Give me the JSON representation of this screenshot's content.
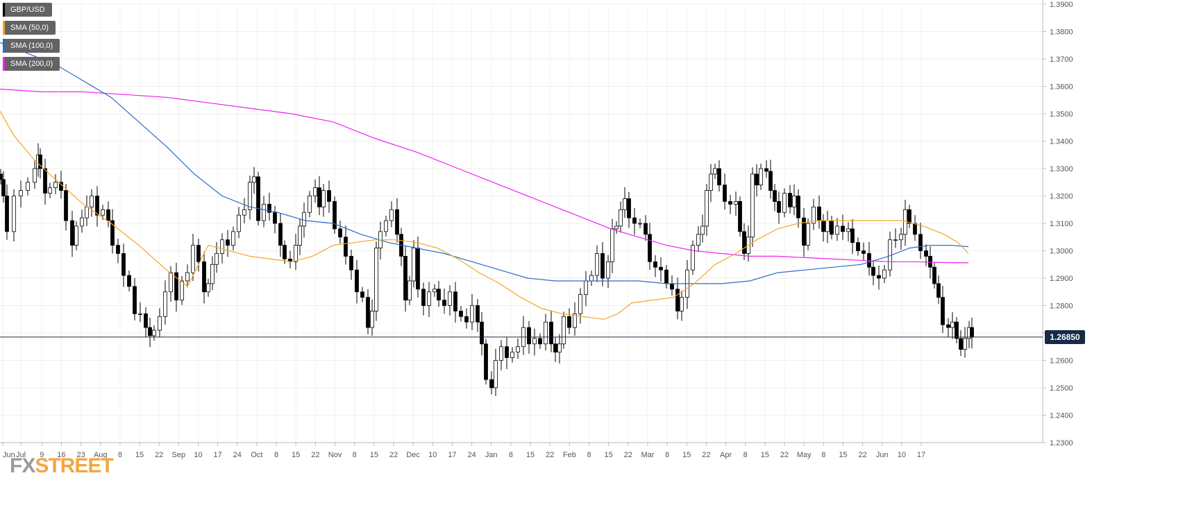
{
  "chart_data": {
    "type": "candlestick",
    "symbol": "GBP/USD",
    "ylim": [
      1.23,
      1.39
    ],
    "y_ticks": [
      "1.3900",
      "1.3800",
      "1.3700",
      "1.3600",
      "1.3500",
      "1.3400",
      "1.3300",
      "1.3200",
      "1.3100",
      "1.3000",
      "1.2900",
      "1.2800",
      "1.2700",
      "1.2600",
      "1.2500",
      "1.2400",
      "1.2300"
    ],
    "x_ticks": [
      "Jun",
      "Jul",
      "9",
      "16",
      "23",
      "Aug",
      "8",
      "15",
      "22",
      "Sep",
      "10",
      "17",
      "24",
      "Oct",
      "8",
      "15",
      "22",
      "Nov",
      "8",
      "15",
      "22",
      "Dec",
      "10",
      "17",
      "24",
      "Jan",
      "8",
      "15",
      "22",
      "Feb",
      "8",
      "15",
      "22",
      "Mar",
      "8",
      "15",
      "22",
      "Apr",
      "8",
      "15",
      "22",
      "May",
      "8",
      "15",
      "22",
      "Jun",
      "10",
      "17"
    ],
    "current_price": "1.26850",
    "current_price_value": 1.2685,
    "legend": [
      {
        "name": "GBP/USD",
        "color": "#000000"
      },
      {
        "name": "SMA (50,0)",
        "color": "#f5a623"
      },
      {
        "name": "SMA (100,0)",
        "color": "#2b6cc4"
      },
      {
        "name": "SMA (200,0)",
        "color": "#ee22ee"
      }
    ],
    "close_series": [
      [
        1,
        1.326
      ],
      [
        5,
        1.32
      ],
      [
        10,
        1.307
      ],
      [
        20,
        1.32
      ],
      [
        30,
        1.322
      ],
      [
        40,
        1.325
      ],
      [
        50,
        1.33
      ],
      [
        55,
        1.335
      ],
      [
        58,
        1.33
      ],
      [
        65,
        1.321
      ],
      [
        72,
        1.323
      ],
      [
        80,
        1.325
      ],
      [
        88,
        1.322
      ],
      [
        95,
        1.311
      ],
      [
        104,
        1.302
      ],
      [
        110,
        1.309
      ],
      [
        118,
        1.312
      ],
      [
        125,
        1.316
      ],
      [
        132,
        1.32
      ],
      [
        140,
        1.313
      ],
      [
        148,
        1.315
      ],
      [
        156,
        1.311
      ],
      [
        162,
        1.302
      ],
      [
        170,
        1.299
      ],
      [
        178,
        1.291
      ],
      [
        186,
        1.287
      ],
      [
        194,
        1.277
      ],
      [
        202,
        1.277
      ],
      [
        210,
        1.272
      ],
      [
        216,
        1.269
      ],
      [
        222,
        1.271
      ],
      [
        230,
        1.276
      ],
      [
        238,
        1.285
      ],
      [
        246,
        1.292
      ],
      [
        254,
        1.282
      ],
      [
        262,
        1.289
      ],
      [
        270,
        1.292
      ],
      [
        278,
        1.302
      ],
      [
        286,
        1.296
      ],
      [
        294,
        1.285
      ],
      [
        300,
        1.288
      ],
      [
        306,
        1.295
      ],
      [
        312,
        1.299
      ],
      [
        320,
        1.304
      ],
      [
        328,
        1.302
      ],
      [
        336,
        1.307
      ],
      [
        344,
        1.313
      ],
      [
        352,
        1.315
      ],
      [
        360,
        1.325
      ],
      [
        366,
        1.327
      ],
      [
        372,
        1.311
      ],
      [
        380,
        1.317
      ],
      [
        388,
        1.314
      ],
      [
        396,
        1.31
      ],
      [
        404,
        1.302
      ],
      [
        410,
        1.297
      ],
      [
        418,
        1.296
      ],
      [
        426,
        1.302
      ],
      [
        432,
        1.309
      ],
      [
        438,
        1.314
      ],
      [
        446,
        1.32
      ],
      [
        454,
        1.323
      ],
      [
        460,
        1.316
      ],
      [
        466,
        1.322
      ],
      [
        474,
        1.318
      ],
      [
        482,
        1.308
      ],
      [
        490,
        1.305
      ],
      [
        498,
        1.298
      ],
      [
        506,
        1.293
      ],
      [
        514,
        1.285
      ],
      [
        522,
        1.283
      ],
      [
        530,
        1.272
      ],
      [
        536,
        1.278
      ],
      [
        542,
        1.301
      ],
      [
        548,
        1.307
      ],
      [
        556,
        1.311
      ],
      [
        564,
        1.315
      ],
      [
        572,
        1.306
      ],
      [
        578,
        1.298
      ],
      [
        584,
        1.282
      ],
      [
        590,
        1.289
      ],
      [
        596,
        1.301
      ],
      [
        602,
        1.286
      ],
      [
        610,
        1.28
      ],
      [
        618,
        1.285
      ],
      [
        626,
        1.286
      ],
      [
        632,
        1.282
      ],
      [
        640,
        1.28
      ],
      [
        648,
        1.285
      ],
      [
        656,
        1.278
      ],
      [
        664,
        1.276
      ],
      [
        672,
        1.274
      ],
      [
        680,
        1.28
      ],
      [
        688,
        1.274
      ],
      [
        694,
        1.266
      ],
      [
        700,
        1.253
      ],
      [
        708,
        1.25
      ],
      [
        714,
        1.26
      ],
      [
        722,
        1.265
      ],
      [
        730,
        1.261
      ],
      [
        738,
        1.263
      ],
      [
        746,
        1.265
      ],
      [
        754,
        1.272
      ],
      [
        762,
        1.266
      ],
      [
        770,
        1.268
      ],
      [
        778,
        1.266
      ],
      [
        786,
        1.274
      ],
      [
        794,
        1.266
      ],
      [
        800,
        1.263
      ],
      [
        806,
        1.266
      ],
      [
        812,
        1.276
      ],
      [
        820,
        1.272
      ],
      [
        828,
        1.277
      ],
      [
        836,
        1.284
      ],
      [
        844,
        1.289
      ],
      [
        852,
        1.291
      ],
      [
        860,
        1.299
      ],
      [
        868,
        1.29
      ],
      [
        876,
        1.296
      ],
      [
        882,
        1.308
      ],
      [
        888,
        1.309
      ],
      [
        894,
        1.315
      ],
      [
        900,
        1.319
      ],
      [
        906,
        1.312
      ],
      [
        914,
        1.31
      ],
      [
        922,
        1.31
      ],
      [
        930,
        1.306
      ],
      [
        936,
        1.296
      ],
      [
        944,
        1.294
      ],
      [
        952,
        1.293
      ],
      [
        960,
        1.288
      ],
      [
        968,
        1.286
      ],
      [
        976,
        1.278
      ],
      [
        982,
        1.283
      ],
      [
        990,
        1.293
      ],
      [
        998,
        1.302
      ],
      [
        1006,
        1.306
      ],
      [
        1012,
        1.309
      ],
      [
        1018,
        1.322
      ],
      [
        1024,
        1.328
      ],
      [
        1030,
        1.33
      ],
      [
        1036,
        1.324
      ],
      [
        1044,
        1.318
      ],
      [
        1052,
        1.317
      ],
      [
        1060,
        1.318
      ],
      [
        1066,
        1.307
      ],
      [
        1072,
        1.299
      ],
      [
        1078,
        1.305
      ],
      [
        1084,
        1.328
      ],
      [
        1090,
        1.324
      ],
      [
        1096,
        1.33
      ],
      [
        1104,
        1.329
      ],
      [
        1110,
        1.322
      ],
      [
        1116,
        1.318
      ],
      [
        1122,
        1.314
      ],
      [
        1130,
        1.321
      ],
      [
        1138,
        1.316
      ],
      [
        1144,
        1.32
      ],
      [
        1150,
        1.312
      ],
      [
        1158,
        1.302
      ],
      [
        1164,
        1.31
      ],
      [
        1172,
        1.316
      ],
      [
        1180,
        1.311
      ],
      [
        1186,
        1.307
      ],
      [
        1192,
        1.311
      ],
      [
        1198,
        1.306
      ],
      [
        1206,
        1.309
      ],
      [
        1214,
        1.307
      ],
      [
        1222,
        1.308
      ],
      [
        1228,
        1.303
      ],
      [
        1236,
        1.3
      ],
      [
        1244,
        1.299
      ],
      [
        1252,
        1.294
      ],
      [
        1258,
        1.291
      ],
      [
        1266,
        1.29
      ],
      [
        1274,
        1.293
      ],
      [
        1282,
        1.304
      ],
      [
        1290,
        1.304
      ],
      [
        1298,
        1.306
      ],
      [
        1304,
        1.315
      ],
      [
        1310,
        1.31
      ],
      [
        1318,
        1.306
      ],
      [
        1326,
        1.3
      ],
      [
        1334,
        1.298
      ],
      [
        1340,
        1.294
      ],
      [
        1346,
        1.288
      ],
      [
        1352,
        1.283
      ],
      [
        1358,
        1.273
      ],
      [
        1366,
        1.272
      ],
      [
        1372,
        1.274
      ],
      [
        1378,
        1.268
      ],
      [
        1384,
        1.264
      ],
      [
        1390,
        1.268
      ],
      [
        1396,
        1.272
      ],
      [
        1400,
        1.2685
      ]
    ],
    "sma50": [
      [
        0,
        1.351
      ],
      [
        20,
        1.342
      ],
      [
        50,
        1.333
      ],
      [
        80,
        1.326
      ],
      [
        120,
        1.317
      ],
      [
        160,
        1.31
      ],
      [
        200,
        1.302
      ],
      [
        240,
        1.293
      ],
      [
        270,
        1.287
      ],
      [
        300,
        1.302
      ],
      [
        330,
        1.3
      ],
      [
        360,
        1.298
      ],
      [
        390,
        1.297
      ],
      [
        420,
        1.296
      ],
      [
        450,
        1.298
      ],
      [
        480,
        1.302
      ],
      [
        510,
        1.303
      ],
      [
        540,
        1.304
      ],
      [
        570,
        1.304
      ],
      [
        600,
        1.303
      ],
      [
        630,
        1.301
      ],
      [
        660,
        1.297
      ],
      [
        690,
        1.292
      ],
      [
        720,
        1.288
      ],
      [
        750,
        1.283
      ],
      [
        780,
        1.279
      ],
      [
        810,
        1.277
      ],
      [
        840,
        1.276
      ],
      [
        870,
        1.275
      ],
      [
        890,
        1.277
      ],
      [
        910,
        1.281
      ],
      [
        940,
        1.282
      ],
      [
        970,
        1.283
      ],
      [
        1000,
        1.288
      ],
      [
        1030,
        1.295
      ],
      [
        1060,
        1.299
      ],
      [
        1090,
        1.304
      ],
      [
        1120,
        1.308
      ],
      [
        1150,
        1.31
      ],
      [
        1180,
        1.311
      ],
      [
        1210,
        1.311
      ],
      [
        1240,
        1.311
      ],
      [
        1270,
        1.311
      ],
      [
        1300,
        1.311
      ],
      [
        1330,
        1.309
      ],
      [
        1360,
        1.306
      ],
      [
        1380,
        1.303
      ],
      [
        1395,
        1.299
      ]
    ],
    "sma100": [
      [
        0,
        1.376
      ],
      [
        40,
        1.372
      ],
      [
        80,
        1.368
      ],
      [
        120,
        1.362
      ],
      [
        160,
        1.356
      ],
      [
        200,
        1.347
      ],
      [
        240,
        1.338
      ],
      [
        280,
        1.328
      ],
      [
        320,
        1.32
      ],
      [
        360,
        1.316
      ],
      [
        400,
        1.314
      ],
      [
        440,
        1.311
      ],
      [
        480,
        1.31
      ],
      [
        520,
        1.306
      ],
      [
        560,
        1.303
      ],
      [
        600,
        1.301
      ],
      [
        640,
        1.299
      ],
      [
        680,
        1.296
      ],
      [
        720,
        1.293
      ],
      [
        760,
        1.29
      ],
      [
        800,
        1.289
      ],
      [
        840,
        1.289
      ],
      [
        880,
        1.289
      ],
      [
        920,
        1.289
      ],
      [
        960,
        1.288
      ],
      [
        1000,
        1.288
      ],
      [
        1040,
        1.288
      ],
      [
        1080,
        1.289
      ],
      [
        1120,
        1.292
      ],
      [
        1160,
        1.293
      ],
      [
        1200,
        1.294
      ],
      [
        1240,
        1.295
      ],
      [
        1280,
        1.298
      ],
      [
        1310,
        1.301
      ],
      [
        1340,
        1.302
      ],
      [
        1370,
        1.302
      ],
      [
        1395,
        1.3015
      ]
    ],
    "sma200": [
      [
        0,
        1.359
      ],
      [
        60,
        1.358
      ],
      [
        120,
        1.358
      ],
      [
        180,
        1.357
      ],
      [
        240,
        1.356
      ],
      [
        300,
        1.354
      ],
      [
        360,
        1.352
      ],
      [
        420,
        1.35
      ],
      [
        480,
        1.347
      ],
      [
        540,
        1.341
      ],
      [
        600,
        1.336
      ],
      [
        660,
        1.33
      ],
      [
        720,
        1.324
      ],
      [
        780,
        1.318
      ],
      [
        840,
        1.312
      ],
      [
        880,
        1.308
      ],
      [
        920,
        1.305
      ],
      [
        960,
        1.302
      ],
      [
        1000,
        1.3
      ],
      [
        1040,
        1.299
      ],
      [
        1080,
        1.298
      ],
      [
        1120,
        1.298
      ],
      [
        1160,
        1.2975
      ],
      [
        1200,
        1.297
      ],
      [
        1240,
        1.2965
      ],
      [
        1280,
        1.296
      ],
      [
        1320,
        1.296
      ],
      [
        1360,
        1.2957
      ],
      [
        1395,
        1.2956
      ]
    ]
  },
  "branding": {
    "logo_prefix": "FX",
    "logo_rest": "STREET"
  }
}
